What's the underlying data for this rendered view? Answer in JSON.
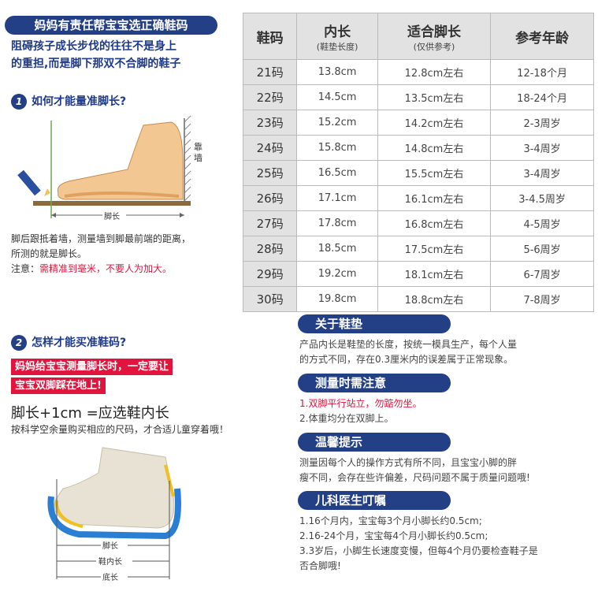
{
  "left": {
    "banner": "妈妈有责任帮宝宝选正确鞋码",
    "subtitle_lines": [
      "阻碍孩子成长步伐的往往不是身上",
      "的重担,而是脚下那双不合脚的鞋子"
    ],
    "q1": {
      "num": "1",
      "text": "如何才能量准脚长?"
    },
    "wall_label": [
      "靠",
      "墙"
    ],
    "foot_label": "脚长",
    "desc_lines": [
      "脚后跟抵着墙，测量墙到脚最前端的距离，",
      "所测的就是脚长。"
    ],
    "note_prefix": "注意：",
    "note_red": "需精准到毫米，不要人为加大。",
    "q2": {
      "num": "2",
      "text": "怎样才能买准鞋码?"
    },
    "red_line1": "妈妈给宝宝测量脚长时，一定要让",
    "red_line2": "宝宝双脚踩在地上!",
    "formula": "脚长+1cm =应选鞋内长",
    "formula_sub": "按科学空余量购买相应的尺码，才合适儿童穿着哦！",
    "shoe_labels": [
      "脚长",
      "鞋内长",
      "底长"
    ]
  },
  "table": {
    "headers": [
      {
        "main": "鞋码",
        "sub": ""
      },
      {
        "main": "内长",
        "sub": "(鞋垫长度)"
      },
      {
        "main": "适合脚长",
        "sub": "(仅供参考)"
      },
      {
        "main": "参考年龄",
        "sub": ""
      }
    ],
    "rows": [
      [
        "21码",
        "13.8cm",
        "12.8cm左右",
        "12-18个月"
      ],
      [
        "22码",
        "14.5cm",
        "13.5cm左右",
        "18-24个月"
      ],
      [
        "23码",
        "15.2cm",
        "14.2cm左右",
        "2-3周岁"
      ],
      [
        "24码",
        "15.8cm",
        "14.8cm左右",
        "3-4周岁"
      ],
      [
        "25码",
        "16.5cm",
        "15.5cm左右",
        "3-4周岁"
      ],
      [
        "26码",
        "17.1cm",
        "16.1cm左右",
        "3-4.5周岁"
      ],
      [
        "27码",
        "17.8cm",
        "16.8cm左右",
        "4-5周岁"
      ],
      [
        "28码",
        "18.5cm",
        "17.5cm左右",
        "5-6周岁"
      ],
      [
        "29码",
        "19.2cm",
        "18.1cm左右",
        "6-7周岁"
      ],
      [
        "30码",
        "19.8cm",
        "18.8cm左右",
        "7-8周岁"
      ]
    ]
  },
  "right": {
    "s1": {
      "title": "关于鞋垫",
      "lines": [
        "产品内长是鞋垫的长度，按统一模具生产，每个人量",
        "的方式不同，存在0.3厘米内的误差属于正常现象。"
      ]
    },
    "s2": {
      "title": "测量时需注意",
      "line_red": "1.双脚平行站立，勿踮勿坐。",
      "line2": "2.体重均分在双脚上。"
    },
    "s3": {
      "title": "温馨提示",
      "lines": [
        "测量因每个人的操作方式有所不同，且宝宝小脚的胖",
        "瘦不同，会存在些许偏差，尺码问题不属于质量问题哦!"
      ]
    },
    "s4": {
      "title": "儿科医生叮嘱",
      "lines": [
        "1.16个月内，宝宝每3个月小脚长约0.5cm;",
        "2.16-24个月，宝宝每4个月小脚长约0.5cm;",
        "3.3岁后，小脚生长速度变慢，但每4个月仍要检查鞋子是",
        "   否合脚哦!"
      ]
    }
  },
  "colors": {
    "navy": "#233f86",
    "red": "#e0143c",
    "table_header": "#e2e2e2"
  }
}
